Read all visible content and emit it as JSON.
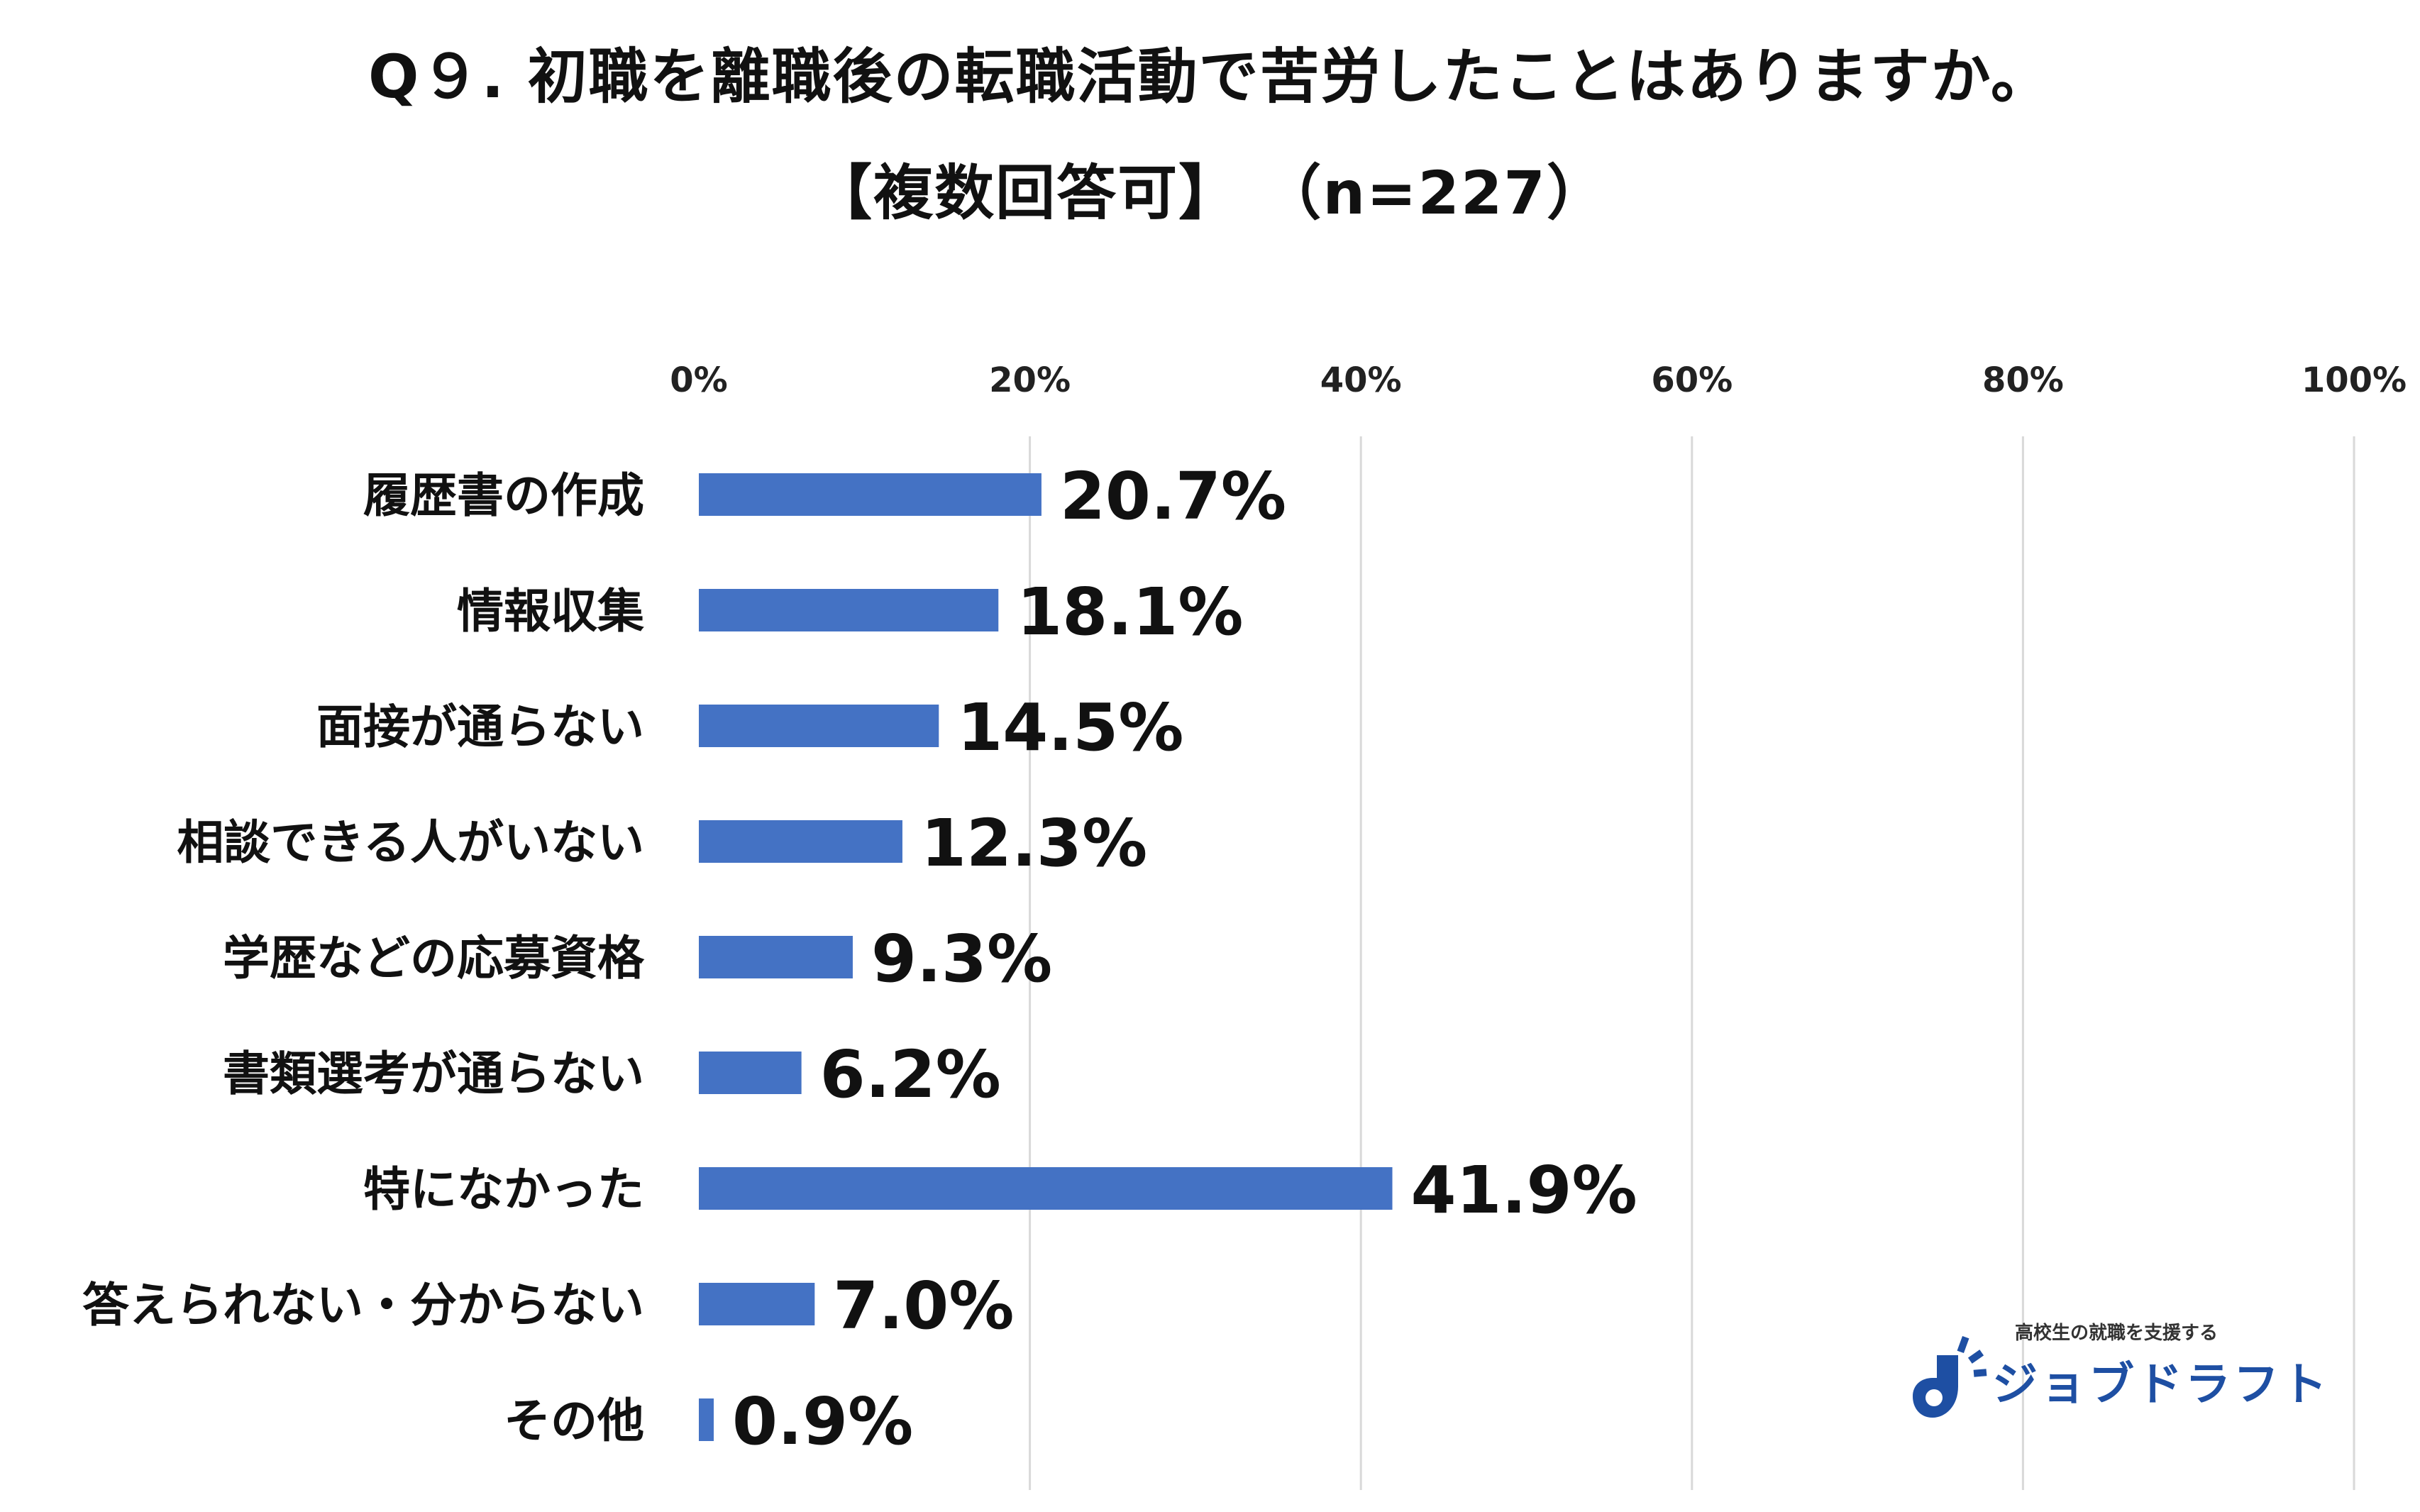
{
  "chart_data": {
    "type": "bar",
    "orientation": "horizontal",
    "title": "Q９. 初職を離職後の転職活動で苦労したことはありますか。",
    "subtitle": "【複数回答可】 （n=227）",
    "categories": [
      "履歴書の作成",
      "情報収集",
      "面接が通らない",
      "相談できる人がいない",
      "学歴などの応募資格",
      "書類選考が通らない",
      "特になかった",
      "答えられない・分からない",
      "その他"
    ],
    "values": [
      20.7,
      18.1,
      14.5,
      12.3,
      9.3,
      6.2,
      41.9,
      7.0,
      0.9
    ],
    "value_labels": [
      "20.7%",
      "18.1%",
      "14.5%",
      "12.3%",
      "9.3%",
      "6.2%",
      "41.9%",
      "7.0%",
      "0.9%"
    ],
    "xlim": [
      0,
      100
    ],
    "x_ticks": [
      0,
      20,
      40,
      60,
      80,
      100
    ],
    "x_tick_labels": [
      "0%",
      "20%",
      "40%",
      "60%",
      "80%",
      "100%"
    ],
    "x_axis_position": "top",
    "grid": true,
    "legend": "none",
    "bar_color": "#4472c4",
    "gridline_color": "#d9d9d9"
  },
  "logo": {
    "tagline": "高校生の就職を支援する",
    "name": "ジョブドラフト",
    "color": "#1e4fa3"
  }
}
